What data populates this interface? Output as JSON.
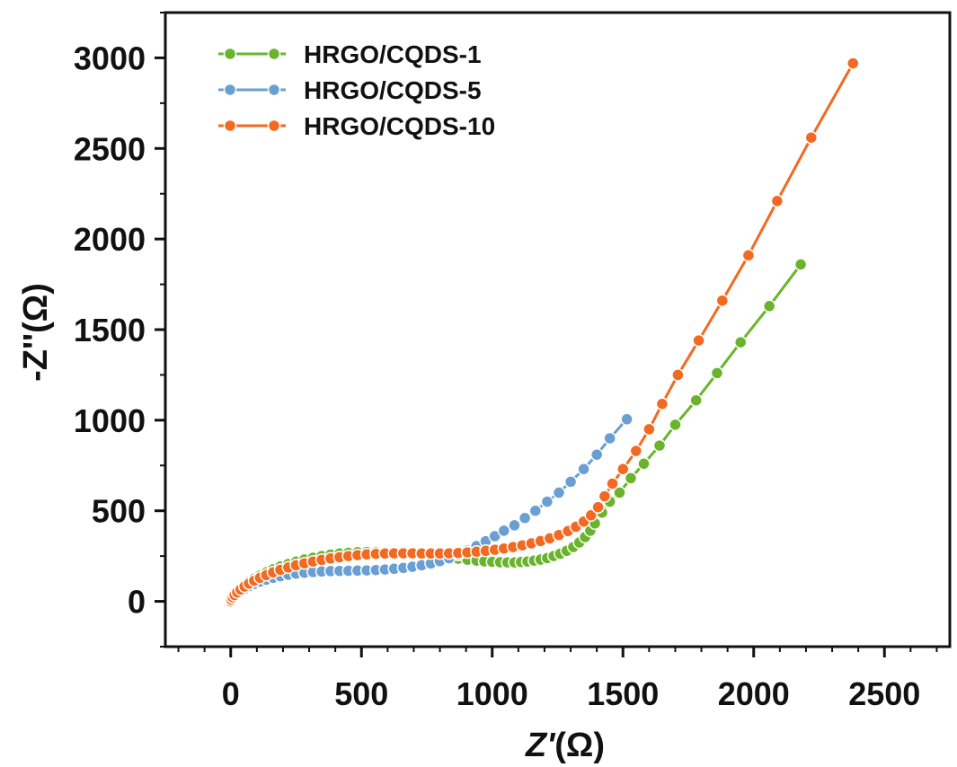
{
  "chart_data": {
    "type": "scatter",
    "xlabel_prefix": "Z'",
    "xlabel_suffix": "(Ω)",
    "ylabel": "-Z''(Ω)",
    "xlim": [
      -250,
      2750
    ],
    "ylim": [
      -250,
      3250
    ],
    "xticks": [
      0,
      500,
      1000,
      1500,
      2000,
      2500
    ],
    "yticks": [
      0,
      500,
      1000,
      1500,
      2000,
      2500,
      3000
    ],
    "grid": false,
    "legend_position": "top-left",
    "series": [
      {
        "name": "HRGO/CQDS-1",
        "color": "#6ab42d",
        "points": [
          [
            0,
            0
          ],
          [
            3,
            12
          ],
          [
            8,
            25
          ],
          [
            15,
            40
          ],
          [
            25,
            55
          ],
          [
            38,
            72
          ],
          [
            53,
            90
          ],
          [
            70,
            108
          ],
          [
            90,
            126
          ],
          [
            112,
            143
          ],
          [
            136,
            160
          ],
          [
            162,
            177
          ],
          [
            190,
            192
          ],
          [
            220,
            206
          ],
          [
            250,
            219
          ],
          [
            282,
            231
          ],
          [
            315,
            241
          ],
          [
            348,
            250
          ],
          [
            382,
            258
          ],
          [
            416,
            264
          ],
          [
            450,
            268
          ],
          [
            485,
            271
          ],
          [
            520,
            272
          ],
          [
            555,
            272
          ],
          [
            590,
            271
          ],
          [
            625,
            269
          ],
          [
            660,
            266
          ],
          [
            695,
            263
          ],
          [
            730,
            259
          ],
          [
            765,
            254
          ],
          [
            800,
            248
          ],
          [
            835,
            242
          ],
          [
            870,
            236
          ],
          [
            905,
            230
          ],
          [
            940,
            225
          ],
          [
            970,
            221
          ],
          [
            1000,
            218
          ],
          [
            1030,
            216
          ],
          [
            1058,
            215
          ],
          [
            1085,
            215
          ],
          [
            1110,
            217
          ],
          [
            1135,
            220
          ],
          [
            1160,
            225
          ],
          [
            1185,
            231
          ],
          [
            1210,
            239
          ],
          [
            1235,
            250
          ],
          [
            1260,
            263
          ],
          [
            1285,
            279
          ],
          [
            1310,
            300
          ],
          [
            1333,
            325
          ],
          [
            1355,
            355
          ],
          [
            1375,
            390
          ],
          [
            1393,
            430
          ],
          [
            1420,
            490
          ],
          [
            1450,
            550
          ],
          [
            1487,
            600
          ],
          [
            1530,
            680
          ],
          [
            1580,
            760
          ],
          [
            1640,
            860
          ],
          [
            1700,
            975
          ],
          [
            1780,
            1110
          ],
          [
            1860,
            1260
          ],
          [
            1950,
            1430
          ],
          [
            2060,
            1630
          ],
          [
            2180,
            1860
          ]
        ]
      },
      {
        "name": "HRGO/CQDS-5",
        "color": "#6a9fd4",
        "points": [
          [
            0,
            0
          ],
          [
            3,
            8
          ],
          [
            8,
            18
          ],
          [
            15,
            30
          ],
          [
            25,
            43
          ],
          [
            38,
            57
          ],
          [
            53,
            70
          ],
          [
            70,
            84
          ],
          [
            90,
            97
          ],
          [
            112,
            109
          ],
          [
            136,
            120
          ],
          [
            162,
            130
          ],
          [
            190,
            139
          ],
          [
            220,
            147
          ],
          [
            250,
            153
          ],
          [
            282,
            158
          ],
          [
            315,
            162
          ],
          [
            348,
            165
          ],
          [
            382,
            167
          ],
          [
            416,
            168
          ],
          [
            450,
            169
          ],
          [
            485,
            170
          ],
          [
            520,
            171
          ],
          [
            555,
            173
          ],
          [
            590,
            176
          ],
          [
            625,
            180
          ],
          [
            660,
            185
          ],
          [
            695,
            191
          ],
          [
            730,
            199
          ],
          [
            765,
            209
          ],
          [
            800,
            222
          ],
          [
            835,
            238
          ],
          [
            870,
            257
          ],
          [
            905,
            280
          ],
          [
            940,
            305
          ],
          [
            975,
            332
          ],
          [
            1010,
            360
          ],
          [
            1045,
            390
          ],
          [
            1085,
            420
          ],
          [
            1125,
            460
          ],
          [
            1165,
            500
          ],
          [
            1210,
            550
          ],
          [
            1255,
            600
          ],
          [
            1300,
            660
          ],
          [
            1350,
            730
          ],
          [
            1400,
            810
          ],
          [
            1450,
            900
          ],
          [
            1515,
            1005
          ]
        ]
      },
      {
        "name": "HRGO/CQDS-10",
        "color": "#f26a21",
        "points": [
          [
            0,
            0
          ],
          [
            3,
            10
          ],
          [
            8,
            22
          ],
          [
            15,
            35
          ],
          [
            25,
            50
          ],
          [
            38,
            66
          ],
          [
            53,
            82
          ],
          [
            70,
            98
          ],
          [
            90,
            114
          ],
          [
            112,
            130
          ],
          [
            136,
            145
          ],
          [
            162,
            160
          ],
          [
            190,
            174
          ],
          [
            220,
            187
          ],
          [
            250,
            199
          ],
          [
            282,
            210
          ],
          [
            315,
            220
          ],
          [
            348,
            229
          ],
          [
            382,
            237
          ],
          [
            416,
            244
          ],
          [
            450,
            250
          ],
          [
            485,
            255
          ],
          [
            520,
            259
          ],
          [
            555,
            262
          ],
          [
            590,
            264
          ],
          [
            625,
            265
          ],
          [
            660,
            265
          ],
          [
            695,
            265
          ],
          [
            730,
            264
          ],
          [
            765,
            264
          ],
          [
            800,
            264
          ],
          [
            835,
            265
          ],
          [
            870,
            267
          ],
          [
            905,
            270
          ],
          [
            940,
            274
          ],
          [
            975,
            279
          ],
          [
            1010,
            285
          ],
          [
            1045,
            292
          ],
          [
            1080,
            300
          ],
          [
            1115,
            309
          ],
          [
            1150,
            320
          ],
          [
            1185,
            333
          ],
          [
            1220,
            348
          ],
          [
            1255,
            366
          ],
          [
            1290,
            388
          ],
          [
            1320,
            412
          ],
          [
            1350,
            440
          ],
          [
            1378,
            475
          ],
          [
            1405,
            520
          ],
          [
            1430,
            580
          ],
          [
            1460,
            650
          ],
          [
            1500,
            730
          ],
          [
            1550,
            830
          ],
          [
            1600,
            950
          ],
          [
            1650,
            1090
          ],
          [
            1710,
            1250
          ],
          [
            1790,
            1440
          ],
          [
            1880,
            1660
          ],
          [
            1980,
            1910
          ],
          [
            2090,
            2210
          ],
          [
            2220,
            2560
          ],
          [
            2380,
            2970
          ]
        ]
      }
    ]
  }
}
